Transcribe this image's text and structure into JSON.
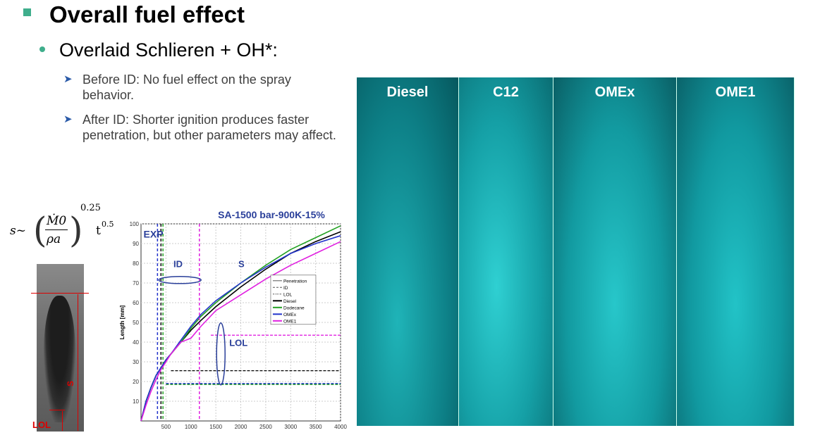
{
  "slide": {
    "title": "Overall fuel effect",
    "subtitle": "Overlaid Schlieren + OH*:",
    "items": [
      {
        "icon": "arrow-bullet-icon",
        "text": "Before ID: No fuel effect on the spray behavior."
      },
      {
        "icon": "arrow-bullet-icon",
        "text": "After ID: Shorter ignition produces faster penetration, but other parameters may affect."
      }
    ],
    "accent_color": "#3fae8c",
    "formula": {
      "lhs": "s~",
      "num": "Ṁ0",
      "den": "ρa",
      "exp1": "0.25",
      "t": "t",
      "exp2": "0.5"
    },
    "spray_labels": {
      "s": "S",
      "lol": "LOL"
    },
    "panels": [
      "Diesel",
      "C12",
      "OMEx",
      "OME1"
    ]
  },
  "chart_data": {
    "type": "line",
    "title": "SA-1500 bar-900K-15%",
    "xlabel": "",
    "ylabel": "Length [mm]",
    "xlim": [
      0,
      4000
    ],
    "ylim": [
      0,
      100
    ],
    "xticks": [
      500,
      1000,
      1500,
      2000,
      2500,
      3000,
      3500,
      4000
    ],
    "yticks": [
      10,
      20,
      30,
      40,
      50,
      60,
      70,
      80,
      90,
      100
    ],
    "grid": true,
    "legend_placement": "right",
    "legend": [
      "Penetration",
      "ID",
      "LOL",
      "Diesel",
      "Dodecane",
      "OMEx",
      "OME1"
    ],
    "annotations": [
      "EXP",
      "ID",
      "S",
      "LOL"
    ],
    "x": [
      0,
      100,
      200,
      300,
      400,
      500,
      600,
      800,
      1000,
      1200,
      1500,
      2000,
      2500,
      3000,
      3500,
      4000
    ],
    "series": [
      {
        "name": "Diesel",
        "color": "#000000",
        "penetration": [
          0,
          10,
          17,
          23,
          27,
          31,
          34,
          40,
          46,
          51,
          58,
          68,
          77,
          85,
          91,
          96
        ],
        "id": 400,
        "lol": {
          "start": 600,
          "value": 25.5
        }
      },
      {
        "name": "Dodecane",
        "color": "#22a022",
        "penetration": [
          0,
          10,
          17,
          23,
          27,
          31,
          34,
          40,
          47,
          53,
          60,
          70,
          79,
          87,
          93,
          99
        ],
        "id": 440,
        "lol": {
          "start": 500,
          "value": 18.5
        }
      },
      {
        "name": "OMEx",
        "color": "#2233cc",
        "penetration": [
          0,
          10,
          17,
          23,
          27,
          31,
          34,
          41,
          48,
          54,
          61,
          70,
          78,
          85,
          90,
          94
        ],
        "id": 330,
        "lol": {
          "start": 500,
          "value": 19
        }
      },
      {
        "name": "OME1",
        "color": "#e020e0",
        "penetration": [
          0,
          8,
          15,
          21,
          26,
          30,
          34,
          40,
          42,
          48,
          56,
          64,
          72,
          79,
          85,
          91
        ],
        "id": 1170,
        "lol": {
          "start": 1400,
          "value": 43.5
        }
      }
    ]
  }
}
